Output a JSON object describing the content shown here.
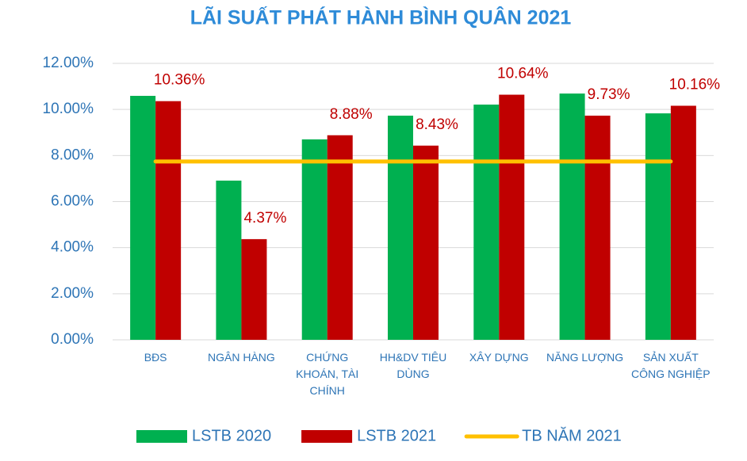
{
  "chart_data": {
    "type": "bar",
    "title": "LÃI SUẤT PHÁT HÀNH BÌNH QUÂN 2021",
    "categories": [
      "BĐS",
      "NGÂN HÀNG",
      "CHỨNG KHOÁN, TÀI CHÍNH",
      "HH&DV TIÊU DÙNG",
      "XÂY DỰNG",
      "NĂNG LƯỢNG",
      "SẢN XUẤT CÔNG NGHIỆP"
    ],
    "series": [
      {
        "name": "LSTB 2020",
        "type": "bar",
        "color": "#00b050",
        "values": [
          10.59,
          6.91,
          8.7,
          9.73,
          10.21,
          10.69,
          9.83
        ]
      },
      {
        "name": "LSTB 2021",
        "type": "bar",
        "color": "#c00000",
        "values": [
          10.36,
          4.37,
          8.88,
          8.43,
          10.64,
          9.73,
          10.16
        ],
        "value_labels": [
          "10.36%",
          "4.37%",
          "8.88%",
          "8.43%",
          "10.64%",
          "9.73%",
          "10.16%"
        ]
      },
      {
        "name": "TB NĂM 2021",
        "type": "line",
        "color": "#ffc000",
        "values": [
          7.74,
          7.74,
          7.74,
          7.74,
          7.74,
          7.74,
          7.74
        ]
      }
    ],
    "ylim": [
      0,
      12
    ],
    "yticks": [
      {
        "value": 0,
        "label": "0.00%"
      },
      {
        "value": 2,
        "label": "2.00%"
      },
      {
        "value": 4,
        "label": "4.00%"
      },
      {
        "value": 6,
        "label": "6.00%"
      },
      {
        "value": 8,
        "label": "8.00%"
      },
      {
        "value": 10,
        "label": "10.00%"
      },
      {
        "value": 12,
        "label": "12.00%"
      }
    ],
    "grid": true
  }
}
